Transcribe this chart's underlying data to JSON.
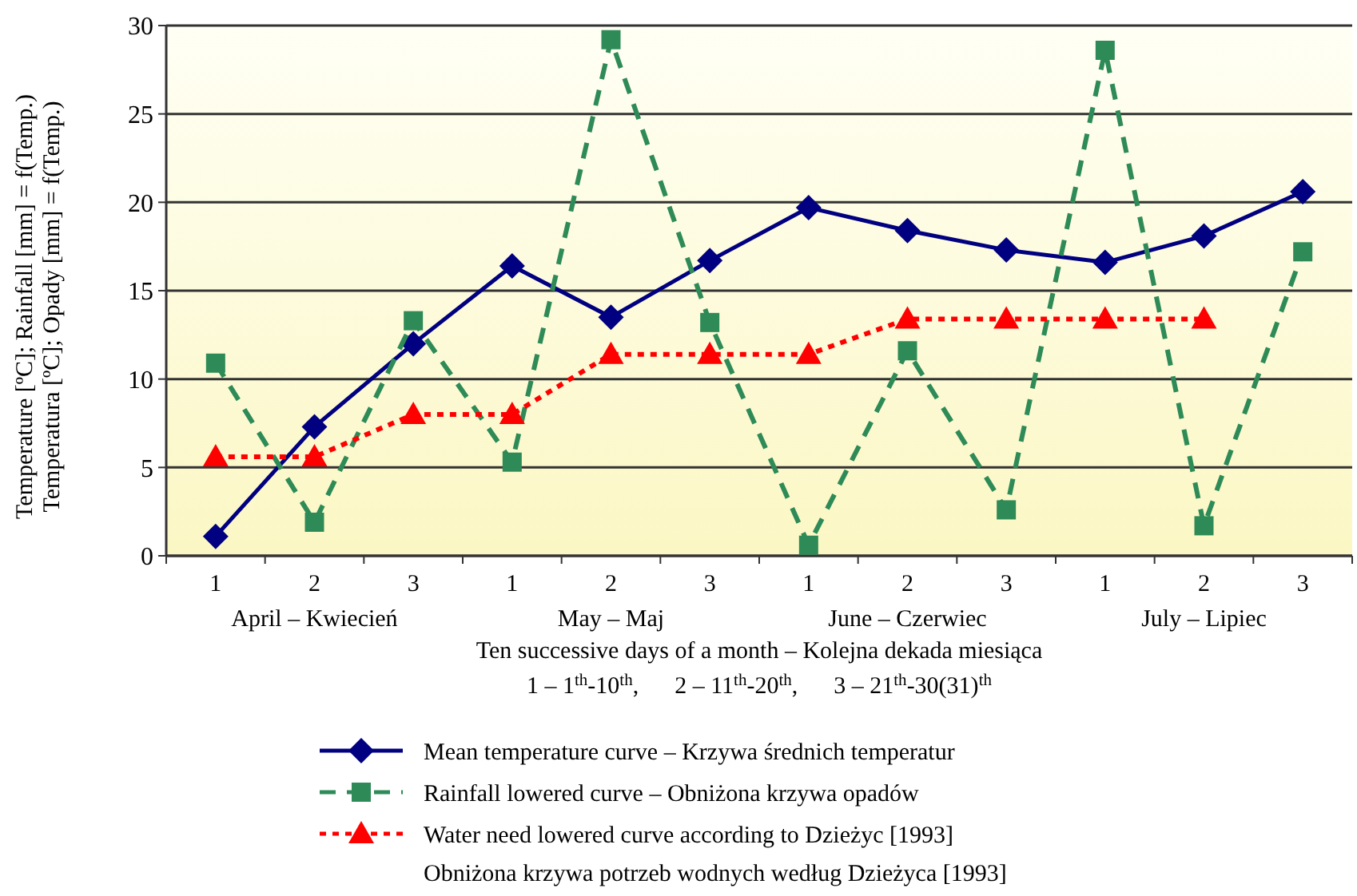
{
  "chart_data": {
    "type": "line",
    "categories": [
      "1",
      "2",
      "3",
      "1",
      "2",
      "3",
      "1",
      "2",
      "3",
      "1",
      "2",
      "3"
    ],
    "ylabel": "Temperature [ºC]; Rainfall [mm] = f(Temp.)\nTemperatura [ºC]; Opady [mm] = f(Temp.)",
    "xlabel": "Ten successive days of a month – Kolejna dekada miesiąca\n1 – 1$^{th}$-10$^{th}$,      2 – 11$^{th}$-20$^{th}$,      3 – 21$^{th}$-30(31)$^{th}$",
    "annotations": [
      "April – Kwiecień",
      "May – Maj",
      "June – Czerwiec",
      "July – Lipiec"
    ],
    "ylim": [
      0,
      30
    ],
    "yticks": [
      0,
      5,
      10,
      15,
      20,
      25,
      30
    ],
    "grid": "y",
    "legend": "bottom",
    "series": [
      {
        "name": "Mean temperature curve – Krzywa średnich temperatur",
        "color": "#000080",
        "marker": "diamond",
        "line_style": "solid",
        "values": [
          1.1,
          7.3,
          12.0,
          16.4,
          13.5,
          16.7,
          19.7,
          18.4,
          17.3,
          16.6,
          18.1,
          20.6
        ]
      },
      {
        "name": "Rainfall lowered curve – Obniżona krzywa opadów",
        "color": "#2e8b57",
        "marker": "square",
        "line_style": "dashed",
        "values": [
          10.9,
          1.9,
          13.3,
          5.3,
          29.2,
          13.2,
          0.6,
          11.6,
          2.6,
          28.6,
          1.7,
          17.2
        ]
      },
      {
        "name": "Water need lowered curve according to Dzieżyc [1993]\nObniżona krzywa potrzeb wodnych według Dzieżyca [1993]",
        "color": "#ff0000",
        "marker": "triangle",
        "line_style": "dotted",
        "values": [
          5.6,
          5.6,
          8.0,
          8.0,
          11.4,
          11.4,
          11.4,
          13.4,
          13.4,
          13.4,
          13.4,
          null
        ]
      }
    ]
  }
}
